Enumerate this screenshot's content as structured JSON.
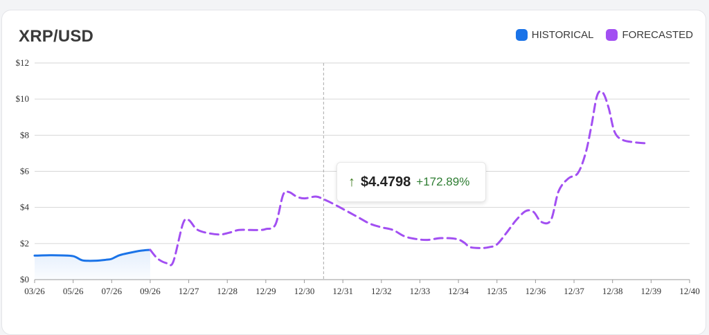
{
  "card": {
    "title": "XRP/USD"
  },
  "legend": [
    {
      "label": "HISTORICAL",
      "color": "#1a73e8"
    },
    {
      "label": "FORECASTED",
      "color": "#a24ff2"
    }
  ],
  "tooltip": {
    "price": "$4.4798",
    "change": "+172.89%"
  },
  "chart_data": {
    "type": "line",
    "y_ticks": [
      "$0",
      "$2",
      "$4",
      "$6",
      "$8",
      "$10",
      "$12"
    ],
    "ylim": [
      0,
      12
    ],
    "x_ticks": [
      "03/26",
      "05/26",
      "07/26",
      "09/26",
      "12/27",
      "12/28",
      "12/29",
      "12/30",
      "12/31",
      "12/32",
      "12/33",
      "12/34",
      "12/35",
      "12/36",
      "12/37",
      "12/38",
      "12/39",
      "12/40"
    ],
    "grid": true,
    "legend_position": "top-right",
    "series": [
      {
        "name": "HISTORICAL",
        "color": "#1a73e8",
        "style": "solid",
        "area_fill": true,
        "points": [
          [
            0,
            1.33
          ],
          [
            0.4,
            1.35
          ],
          [
            0.7,
            1.34
          ],
          [
            1.0,
            1.3
          ],
          [
            1.2,
            1.1
          ],
          [
            1.3,
            1.05
          ],
          [
            1.6,
            1.05
          ],
          [
            1.85,
            1.1
          ],
          [
            2.0,
            1.15
          ],
          [
            2.2,
            1.35
          ],
          [
            2.5,
            1.5
          ],
          [
            2.75,
            1.6
          ],
          [
            3.0,
            1.65
          ]
        ]
      },
      {
        "name": "FORECASTED",
        "color": "#a24ff2",
        "style": "dashed",
        "points": [
          [
            3.0,
            1.65
          ],
          [
            3.2,
            1.15
          ],
          [
            3.45,
            0.9
          ],
          [
            3.6,
            1.0
          ],
          [
            3.85,
            3.1
          ],
          [
            4.0,
            3.3
          ],
          [
            4.2,
            2.8
          ],
          [
            4.45,
            2.6
          ],
          [
            4.8,
            2.5
          ],
          [
            5.05,
            2.6
          ],
          [
            5.3,
            2.75
          ],
          [
            5.6,
            2.75
          ],
          [
            5.85,
            2.75
          ],
          [
            6.0,
            2.8
          ],
          [
            6.25,
            3.05
          ],
          [
            6.45,
            4.7
          ],
          [
            6.6,
            4.85
          ],
          [
            6.8,
            4.6
          ],
          [
            7.0,
            4.5
          ],
          [
            7.3,
            4.6
          ],
          [
            7.5,
            4.45
          ],
          [
            7.75,
            4.2
          ],
          [
            8.1,
            3.8
          ],
          [
            8.4,
            3.45
          ],
          [
            8.7,
            3.1
          ],
          [
            9.0,
            2.9
          ],
          [
            9.3,
            2.75
          ],
          [
            9.6,
            2.4
          ],
          [
            9.9,
            2.25
          ],
          [
            10.2,
            2.2
          ],
          [
            10.55,
            2.3
          ],
          [
            10.95,
            2.25
          ],
          [
            11.15,
            2.05
          ],
          [
            11.3,
            1.8
          ],
          [
            11.6,
            1.75
          ],
          [
            11.8,
            1.8
          ],
          [
            12.0,
            1.95
          ],
          [
            12.25,
            2.6
          ],
          [
            12.5,
            3.3
          ],
          [
            12.75,
            3.8
          ],
          [
            12.95,
            3.75
          ],
          [
            13.15,
            3.2
          ],
          [
            13.4,
            3.3
          ],
          [
            13.6,
            4.9
          ],
          [
            13.85,
            5.6
          ],
          [
            14.1,
            5.9
          ],
          [
            14.3,
            7.0
          ],
          [
            14.45,
            8.5
          ],
          [
            14.6,
            10.2
          ],
          [
            14.75,
            10.35
          ],
          [
            14.9,
            9.5
          ],
          [
            15.05,
            8.2
          ],
          [
            15.25,
            7.75
          ],
          [
            15.6,
            7.6
          ],
          [
            15.9,
            7.55
          ]
        ]
      }
    ],
    "hover_x_tick_index": 7.5
  }
}
